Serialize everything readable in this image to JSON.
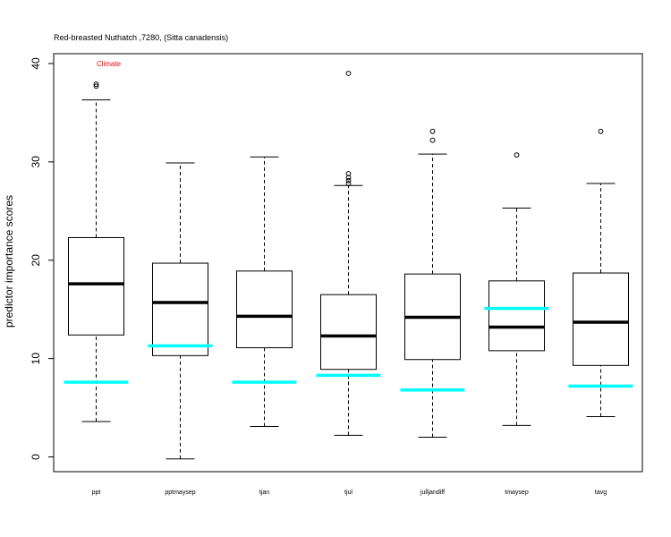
{
  "chart_data": {
    "type": "boxplot",
    "title": "Red-breasted Nuthatch ,7280, (Sitta canadensis)",
    "ylabel": "predictor importance scores",
    "xlabel": "",
    "ylim": [
      -1.5,
      41
    ],
    "yticks": [
      0,
      10,
      20,
      30,
      40
    ],
    "annotation": {
      "text": "Climate",
      "x": "ppt",
      "y": 40,
      "color": "#ff0000"
    },
    "reference_color": "#00ffff",
    "categories": [
      "ppt",
      "pptmaysep",
      "tjan",
      "tjul",
      "julljandiff",
      "tmaysep",
      "tavg"
    ],
    "boxes": [
      {
        "label": "ppt",
        "whisker_low": 3.6,
        "q1": 12.4,
        "median": 17.6,
        "q3": 22.3,
        "whisker_high": 36.3,
        "outliers": [
          37.7,
          37.9
        ],
        "reference": 7.6
      },
      {
        "label": "pptmaysep",
        "whisker_low": -0.2,
        "q1": 10.3,
        "median": 15.7,
        "q3": 19.7,
        "whisker_high": 29.9,
        "outliers": [],
        "reference": 11.3
      },
      {
        "label": "tjan",
        "whisker_low": 3.1,
        "q1": 11.1,
        "median": 14.3,
        "q3": 18.9,
        "whisker_high": 30.5,
        "outliers": [],
        "reference": 7.6
      },
      {
        "label": "tjul",
        "whisker_low": 2.2,
        "q1": 8.9,
        "median": 12.3,
        "q3": 16.5,
        "whisker_high": 27.6,
        "outliers": [
          27.8,
          28.1,
          28.4,
          28.8,
          39.0
        ],
        "reference": 8.3
      },
      {
        "label": "julljandiff",
        "whisker_low": 2.0,
        "q1": 9.9,
        "median": 14.2,
        "q3": 18.6,
        "whisker_high": 30.8,
        "outliers": [
          32.2,
          33.1
        ],
        "reference": 6.8
      },
      {
        "label": "tmaysep",
        "whisker_low": 3.2,
        "q1": 10.8,
        "median": 13.2,
        "q3": 17.9,
        "whisker_high": 25.3,
        "outliers": [
          30.7
        ],
        "reference": 15.1
      },
      {
        "label": "tavg",
        "whisker_low": 4.1,
        "q1": 9.3,
        "median": 13.7,
        "q3": 18.7,
        "whisker_high": 27.8,
        "outliers": [
          33.1
        ],
        "reference": 7.2
      }
    ]
  }
}
